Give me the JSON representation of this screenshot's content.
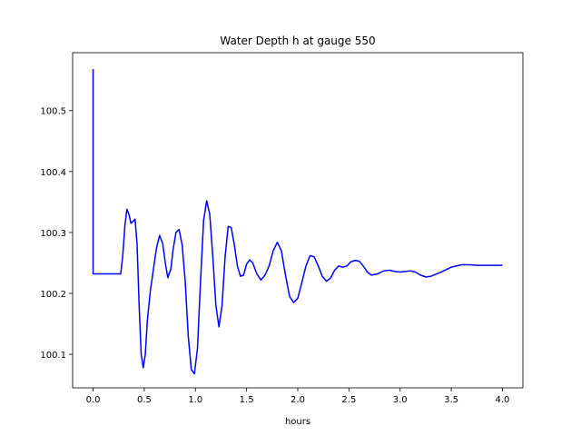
{
  "chart_data": {
    "type": "line",
    "title": "Water Depth h at gauge 550",
    "xlabel": "hours",
    "ylabel": "",
    "xlim": [
      -0.2,
      4.2
    ],
    "ylim": [
      100.045,
      100.595
    ],
    "xticks": [
      0.0,
      0.5,
      1.0,
      1.5,
      2.0,
      2.5,
      3.0,
      3.5,
      4.0
    ],
    "xtick_labels": [
      "0.0",
      "0.5",
      "1.0",
      "1.5",
      "2.0",
      "2.5",
      "3.0",
      "3.5",
      "4.0"
    ],
    "yticks": [
      100.1,
      100.2,
      100.3,
      100.4,
      100.5
    ],
    "ytick_labels": [
      "100.1",
      "100.2",
      "100.3",
      "100.4",
      "100.5"
    ],
    "grid": false,
    "series": [
      {
        "color": "#0000ff",
        "x": [
          0.0,
          0.0,
          0.005,
          0.1,
          0.2,
          0.27,
          0.29,
          0.31,
          0.33,
          0.35,
          0.37,
          0.39,
          0.41,
          0.43,
          0.45,
          0.47,
          0.49,
          0.51,
          0.53,
          0.56,
          0.59,
          0.62,
          0.65,
          0.68,
          0.71,
          0.73,
          0.76,
          0.78,
          0.81,
          0.84,
          0.87,
          0.9,
          0.93,
          0.96,
          0.99,
          1.02,
          1.05,
          1.08,
          1.11,
          1.14,
          1.17,
          1.2,
          1.23,
          1.26,
          1.29,
          1.32,
          1.35,
          1.38,
          1.41,
          1.44,
          1.47,
          1.5,
          1.53,
          1.56,
          1.6,
          1.64,
          1.68,
          1.72,
          1.76,
          1.8,
          1.84,
          1.88,
          1.92,
          1.96,
          2.0,
          2.04,
          2.08,
          2.12,
          2.16,
          2.2,
          2.24,
          2.28,
          2.32,
          2.36,
          2.4,
          2.44,
          2.48,
          2.52,
          2.56,
          2.6,
          2.64,
          2.68,
          2.72,
          2.78,
          2.84,
          2.9,
          2.95,
          3.0,
          3.05,
          3.1,
          3.15,
          3.2,
          3.25,
          3.3,
          3.4,
          3.5,
          3.6,
          3.68,
          3.76,
          3.82,
          3.88,
          3.94,
          4.0
        ],
        "y": [
          100.568,
          100.232,
          100.232,
          100.232,
          100.232,
          100.232,
          100.262,
          100.31,
          100.338,
          100.33,
          100.315,
          100.318,
          100.322,
          100.28,
          100.18,
          100.1,
          100.078,
          100.1,
          100.155,
          100.205,
          100.24,
          100.275,
          100.295,
          100.282,
          100.245,
          100.226,
          100.24,
          100.27,
          100.3,
          100.305,
          100.28,
          100.22,
          100.13,
          100.075,
          100.068,
          100.11,
          100.22,
          100.32,
          100.352,
          100.33,
          100.26,
          100.18,
          100.145,
          100.18,
          100.26,
          100.31,
          100.308,
          100.28,
          100.245,
          100.228,
          100.23,
          100.248,
          100.255,
          100.25,
          100.232,
          100.222,
          100.23,
          100.245,
          100.27,
          100.284,
          100.27,
          100.23,
          100.195,
          100.185,
          100.192,
          100.218,
          100.245,
          100.262,
          100.26,
          100.245,
          100.228,
          100.22,
          100.225,
          100.238,
          100.245,
          100.243,
          100.245,
          100.252,
          100.254,
          100.253,
          100.245,
          100.235,
          100.23,
          100.232,
          100.237,
          100.238,
          100.236,
          100.235,
          100.236,
          100.237,
          100.235,
          100.23,
          100.227,
          100.228,
          100.235,
          100.243,
          100.247,
          100.247,
          100.246,
          100.246,
          100.246,
          100.246,
          100.246
        ]
      }
    ]
  }
}
